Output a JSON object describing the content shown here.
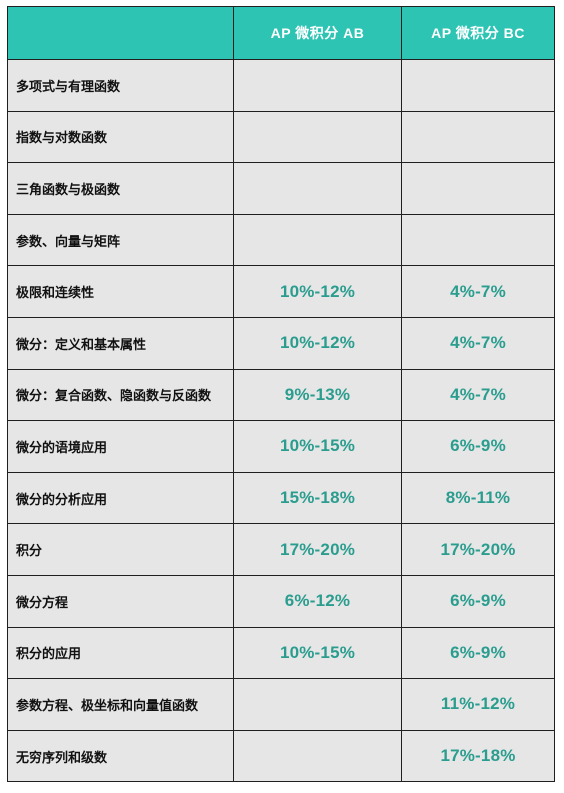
{
  "table": {
    "columns": [
      "",
      "AP 微积分 AB",
      "AP 微积分 BC"
    ],
    "rows": [
      {
        "topic": "多项式与有理函数",
        "ab": "",
        "bc": ""
      },
      {
        "topic": "指数与对数函数",
        "ab": "",
        "bc": ""
      },
      {
        "topic": "三角函数与极函数",
        "ab": "",
        "bc": ""
      },
      {
        "topic": "参数、向量与矩阵",
        "ab": "",
        "bc": ""
      },
      {
        "topic": "极限和连续性",
        "ab": "10%-12%",
        "bc": "4%-7%"
      },
      {
        "topic": "微分：定义和基本属性",
        "ab": "10%-12%",
        "bc": "4%-7%"
      },
      {
        "topic": "微分：复合函数、隐函数与反函数",
        "ab": "9%-13%",
        "bc": "4%-7%"
      },
      {
        "topic": "微分的语境应用",
        "ab": "10%-15%",
        "bc": "6%-9%"
      },
      {
        "topic": "微分的分析应用",
        "ab": "15%-18%",
        "bc": "8%-11%"
      },
      {
        "topic": "积分",
        "ab": "17%-20%",
        "bc": "17%-20%"
      },
      {
        "topic": "微分方程",
        "ab": "6%-12%",
        "bc": "6%-9%"
      },
      {
        "topic": "积分的应用",
        "ab": "10%-15%",
        "bc": "6%-9%"
      },
      {
        "topic": "参数方程、极坐标和向量值函数",
        "ab": "",
        "bc": "11%-12%"
      },
      {
        "topic": "无穷序列和级数",
        "ab": "",
        "bc": "17%-18%"
      }
    ]
  },
  "colors": {
    "header_bg": "#2ec4b4",
    "header_text": "#ffffff",
    "cell_bg": "#e6e6e6",
    "percent_text": "#2a9d8f",
    "border": "#1f1f1f"
  }
}
